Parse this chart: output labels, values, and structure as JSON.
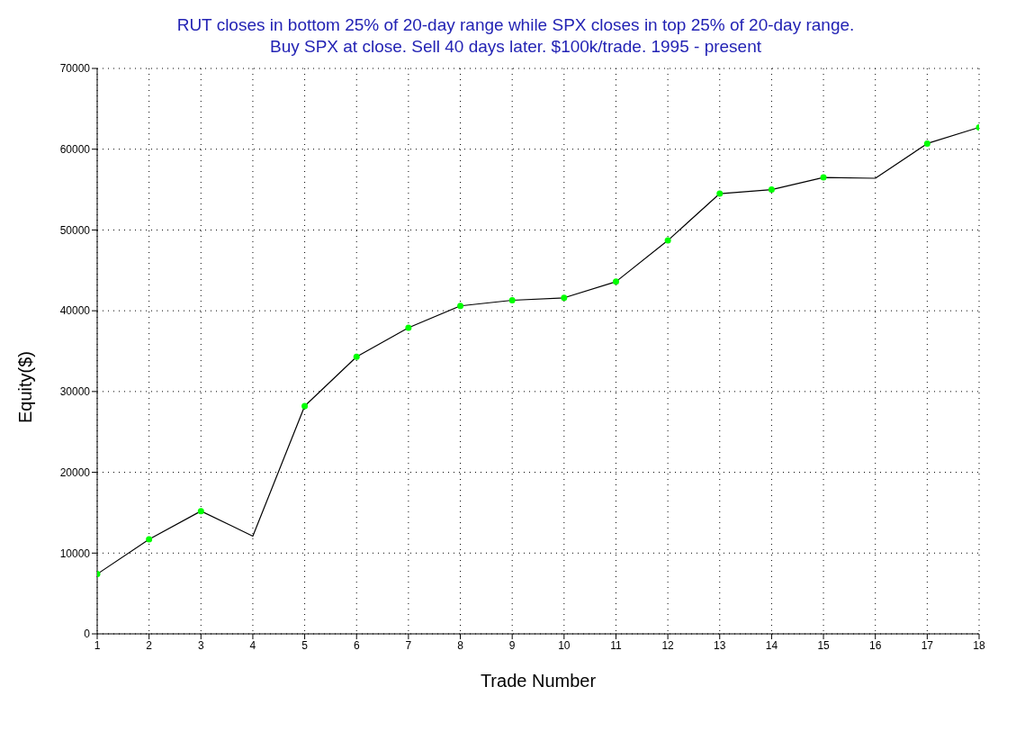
{
  "chart_data": {
    "type": "line",
    "title": "RUT closes in bottom 25% of 20-day range while SPX closes in top 25% of 20-day range.",
    "subtitle": "Buy SPX at close. Sell 40 days later. $100k/trade. 1995 - present",
    "xlabel": "Trade Number",
    "ylabel": "Equity($)",
    "x": [
      1,
      2,
      3,
      4,
      5,
      6,
      7,
      8,
      9,
      10,
      11,
      12,
      13,
      14,
      15,
      16,
      17,
      18
    ],
    "series": [
      {
        "color": "#000000",
        "marker": "none",
        "values": [
          7400,
          11700,
          15200,
          12100,
          28200,
          34300,
          37900,
          40600,
          41300,
          41600,
          43600,
          48700,
          54500,
          55000,
          56500,
          56400,
          60700,
          62700
        ]
      },
      {
        "type": "scatter",
        "color": "#00ff00",
        "marker": "circle",
        "x": [
          1,
          2,
          3,
          5,
          6,
          7,
          8,
          9,
          10,
          11,
          12,
          13,
          14,
          15,
          17,
          18
        ],
        "values": [
          7400,
          11700,
          15200,
          28200,
          34300,
          37900,
          40600,
          41300,
          41600,
          43600,
          48700,
          54500,
          55000,
          56500,
          60700,
          62700
        ]
      }
    ],
    "xlim": [
      1,
      18
    ],
    "xticks": [
      1,
      2,
      3,
      4,
      5,
      6,
      7,
      8,
      9,
      10,
      11,
      12,
      13,
      14,
      15,
      16,
      17,
      18
    ],
    "ylim": [
      0,
      70000
    ],
    "yticks": [
      0,
      10000,
      20000,
      30000,
      40000,
      50000,
      60000,
      70000
    ],
    "grid": true
  }
}
